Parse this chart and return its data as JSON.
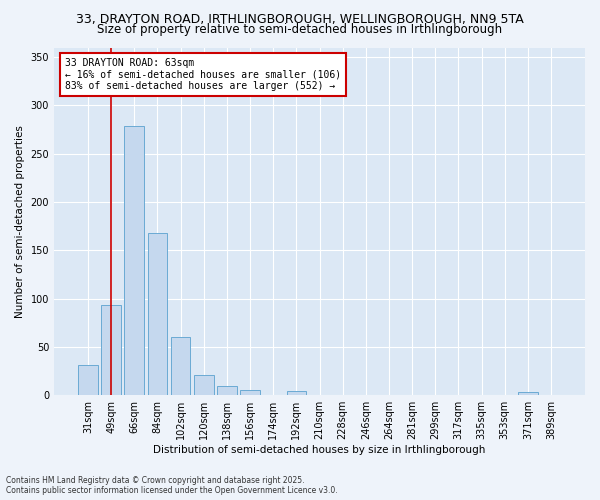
{
  "title_line1": "33, DRAYTON ROAD, IRTHLINGBOROUGH, WELLINGBOROUGH, NN9 5TA",
  "title_line2": "Size of property relative to semi-detached houses in Irthlingborough",
  "xlabel": "Distribution of semi-detached houses by size in Irthlingborough",
  "ylabel": "Number of semi-detached properties",
  "categories": [
    "31sqm",
    "49sqm",
    "66sqm",
    "84sqm",
    "102sqm",
    "120sqm",
    "138sqm",
    "156sqm",
    "174sqm",
    "192sqm",
    "210sqm",
    "228sqm",
    "246sqm",
    "264sqm",
    "281sqm",
    "299sqm",
    "317sqm",
    "335sqm",
    "353sqm",
    "371sqm",
    "389sqm"
  ],
  "values": [
    31,
    93,
    279,
    168,
    60,
    21,
    10,
    5,
    0,
    4,
    0,
    0,
    0,
    0,
    0,
    0,
    0,
    0,
    0,
    3,
    0
  ],
  "bar_color": "#c5d8ee",
  "bar_edge_color": "#6aaad4",
  "red_line_x": 1.0,
  "annotation_title": "33 DRAYTON ROAD: 63sqm",
  "annotation_line2": "← 16% of semi-detached houses are smaller (106)",
  "annotation_line3": "83% of semi-detached houses are larger (552) →",
  "annotation_box_color": "#ffffff",
  "annotation_box_edge": "#cc0000",
  "red_line_color": "#cc0000",
  "ylim": [
    0,
    360
  ],
  "yticks": [
    0,
    50,
    100,
    150,
    200,
    250,
    300,
    350
  ],
  "plot_bg_color": "#dce8f5",
  "fig_bg_color": "#eef3fa",
  "grid_color": "#ffffff",
  "footer_line1": "Contains HM Land Registry data © Crown copyright and database right 2025.",
  "footer_line2": "Contains public sector information licensed under the Open Government Licence v3.0.",
  "title_fontsize": 9,
  "subtitle_fontsize": 8.5
}
